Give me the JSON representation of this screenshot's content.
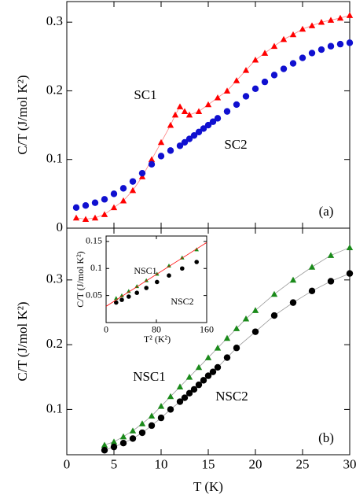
{
  "chart_data": [
    {
      "type": "scatter",
      "ylabel": "C/T (J/mol K²)",
      "annotations": [
        "SC1",
        "SC2",
        "(a)"
      ],
      "xlim": [
        0,
        30
      ],
      "xticks": [
        0,
        5,
        10,
        15,
        20,
        25,
        30
      ],
      "ylim": [
        0,
        0.33
      ],
      "yticks": [
        0,
        0.1,
        0.2,
        0.3
      ],
      "series": [
        {
          "name": "SC1",
          "color": "#ff0000",
          "marker": "triangle",
          "line": true,
          "x": [
            1,
            2,
            3,
            4,
            5,
            6,
            7,
            8,
            9,
            10,
            11,
            11.5,
            12,
            12.5,
            13,
            14,
            15,
            16,
            17,
            18,
            19,
            20,
            21,
            22,
            23,
            24,
            25,
            26,
            27,
            28,
            29,
            30
          ],
          "values": [
            0.015,
            0.013,
            0.015,
            0.02,
            0.03,
            0.04,
            0.055,
            0.075,
            0.1,
            0.125,
            0.15,
            0.165,
            0.177,
            0.17,
            0.165,
            0.17,
            0.18,
            0.19,
            0.2,
            0.215,
            0.23,
            0.245,
            0.255,
            0.265,
            0.275,
            0.282,
            0.29,
            0.295,
            0.3,
            0.303,
            0.306,
            0.31
          ]
        },
        {
          "name": "SC2",
          "color": "#1010d0",
          "marker": "circle",
          "line": false,
          "x": [
            1,
            2,
            3,
            4,
            5,
            6,
            7,
            8,
            9,
            10,
            11,
            12,
            12.5,
            13,
            13.5,
            14,
            14.5,
            15,
            15.5,
            16,
            17,
            18,
            19,
            20,
            21,
            22,
            23,
            24,
            25,
            26,
            27,
            28,
            29,
            30
          ],
          "values": [
            0.03,
            0.033,
            0.037,
            0.042,
            0.05,
            0.058,
            0.068,
            0.08,
            0.093,
            0.105,
            0.113,
            0.12,
            0.125,
            0.13,
            0.135,
            0.14,
            0.145,
            0.15,
            0.155,
            0.16,
            0.17,
            0.18,
            0.192,
            0.203,
            0.213,
            0.223,
            0.232,
            0.24,
            0.248,
            0.255,
            0.26,
            0.265,
            0.268,
            0.27
          ]
        }
      ]
    },
    {
      "type": "scatter",
      "xlabel": "T (K)",
      "ylabel": "C/T (J/mol K²)",
      "annotations": [
        "NSC1",
        "NSC2",
        "(b)"
      ],
      "xlim": [
        0,
        30
      ],
      "xticks": [
        0,
        5,
        10,
        15,
        20,
        25,
        30
      ],
      "ylim": [
        0.03,
        0.38
      ],
      "yticks": [
        0.1,
        0.2,
        0.3
      ],
      "series": [
        {
          "name": "NSC1",
          "color": "#1a8a1a",
          "marker": "triangle",
          "line": true,
          "x": [
            4,
            5,
            6,
            7,
            8,
            9,
            10,
            11,
            12,
            13,
            14,
            15,
            16,
            17,
            18,
            19,
            20,
            22,
            24,
            26,
            28,
            30
          ],
          "values": [
            0.045,
            0.05,
            0.058,
            0.067,
            0.078,
            0.09,
            0.105,
            0.12,
            0.135,
            0.15,
            0.165,
            0.18,
            0.195,
            0.21,
            0.225,
            0.24,
            0.253,
            0.278,
            0.3,
            0.32,
            0.338,
            0.35
          ]
        },
        {
          "name": "NSC2",
          "color": "#000000",
          "marker": "circle",
          "line": true,
          "x": [
            4,
            5,
            6,
            7,
            8,
            9,
            10,
            11,
            12,
            12.5,
            13,
            13.5,
            14,
            14.5,
            15,
            15.5,
            16,
            17,
            18,
            20,
            22,
            24,
            26,
            28,
            30
          ],
          "values": [
            0.037,
            0.042,
            0.048,
            0.055,
            0.064,
            0.075,
            0.087,
            0.1,
            0.112,
            0.118,
            0.125,
            0.131,
            0.138,
            0.145,
            0.152,
            0.158,
            0.165,
            0.18,
            0.195,
            0.22,
            0.245,
            0.265,
            0.283,
            0.298,
            0.31
          ]
        }
      ]
    },
    {
      "type": "scatter",
      "xlabel": "T² (K²)",
      "ylabel": "C/T (J/mol K²)",
      "annotations": [
        "NSC1",
        "NSC2"
      ],
      "xlim": [
        0,
        160
      ],
      "xticks": [
        0,
        80,
        160
      ],
      "ylim": [
        0,
        0.16
      ],
      "yticks": [
        0.05,
        0.1,
        0.15
      ],
      "series": [
        {
          "name": "NSC1",
          "color": "#1a8a1a",
          "marker": "triangle",
          "line": false,
          "x": [
            16,
            25,
            36,
            49,
            64,
            81,
            100,
            121,
            144
          ],
          "values": [
            0.045,
            0.05,
            0.058,
            0.067,
            0.078,
            0.09,
            0.105,
            0.12,
            0.135
          ]
        },
        {
          "name": "NSC2",
          "color": "#000000",
          "marker": "circle",
          "line": false,
          "x": [
            16,
            25,
            36,
            49,
            64,
            81,
            100,
            121,
            144
          ],
          "values": [
            0.037,
            0.042,
            0.048,
            0.055,
            0.064,
            0.075,
            0.087,
            0.1,
            0.112
          ]
        },
        {
          "color": "#ff0000",
          "marker": "none",
          "line": true,
          "x": [
            0,
            160
          ],
          "values": [
            0.03,
            0.148
          ]
        }
      ]
    }
  ]
}
